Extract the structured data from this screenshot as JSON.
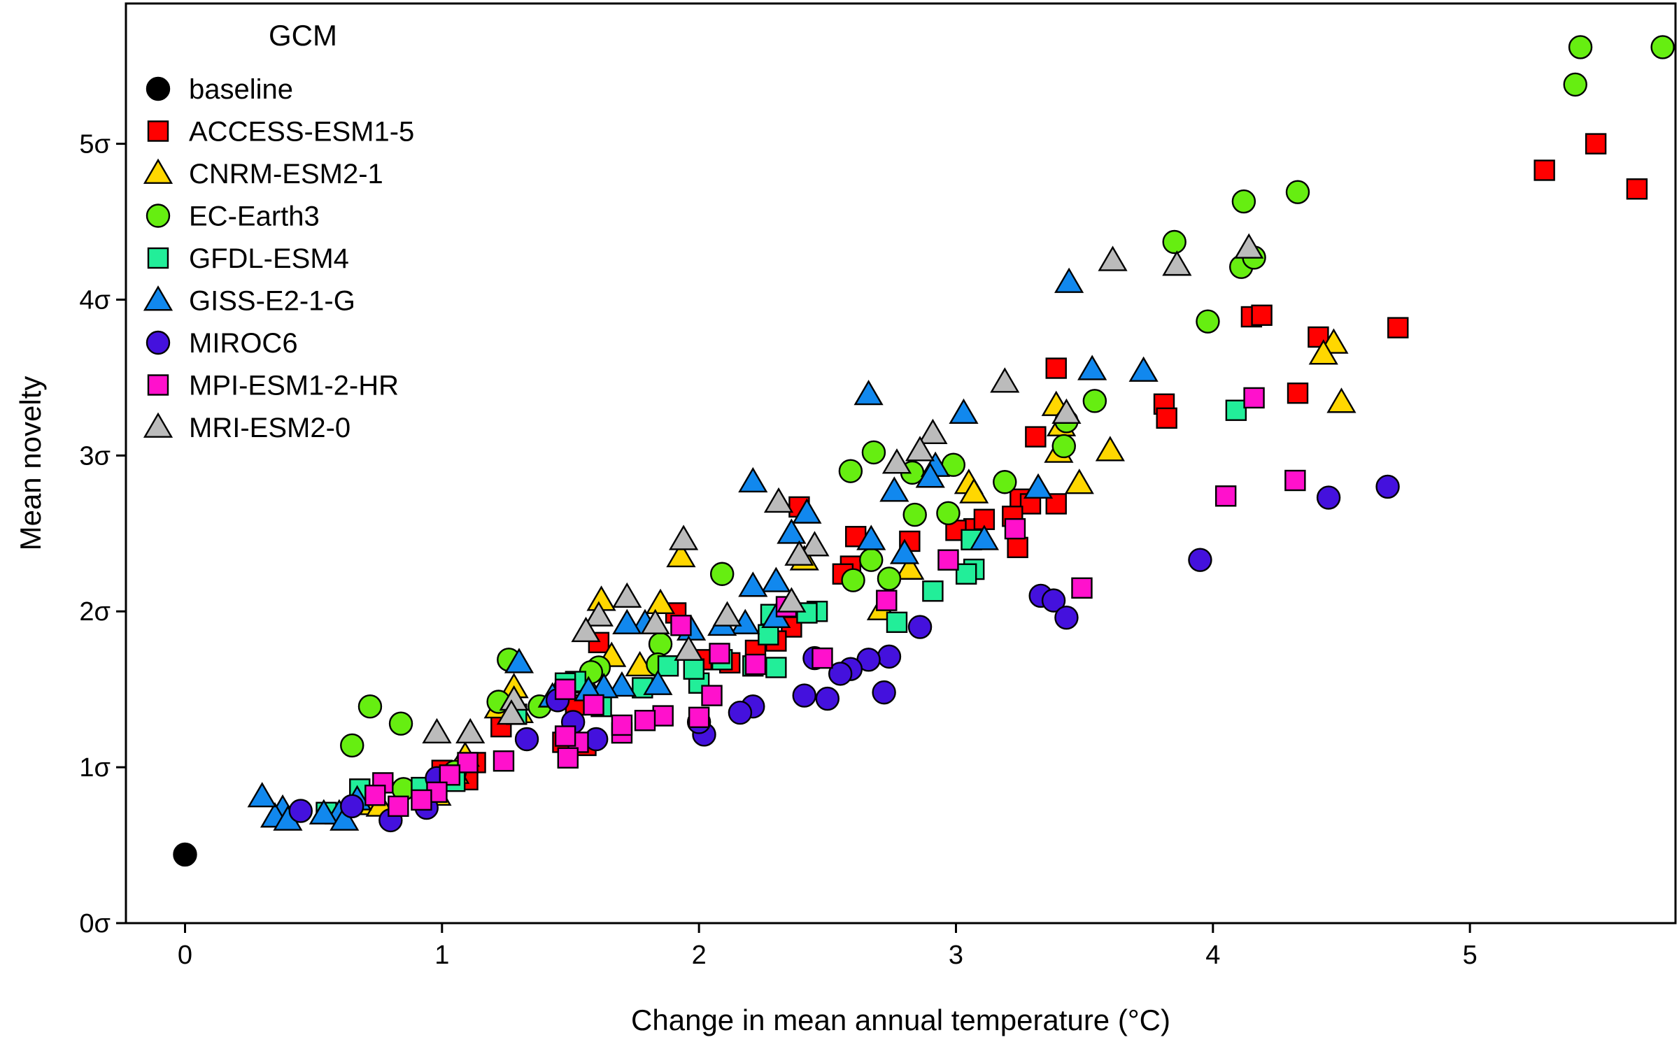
{
  "chart_data": {
    "type": "scatter",
    "title": "",
    "xlabel": "Change in mean annual temperature (°C)",
    "ylabel": "Mean novelty",
    "xlim": [
      -0.23,
      5.8
    ],
    "ylim": [
      0,
      5.9
    ],
    "x_ticks": [
      0,
      1,
      2,
      3,
      4,
      5
    ],
    "x_tick_labels": [
      "0",
      "1",
      "2",
      "3",
      "4",
      "5"
    ],
    "y_ticks": [
      0,
      1,
      2,
      3,
      4,
      5
    ],
    "y_tick_labels": [
      "0σ",
      "1σ",
      "2σ",
      "3σ",
      "4σ",
      "5σ"
    ],
    "grid": false,
    "legend": {
      "title": "GCM",
      "position": "top-left"
    },
    "series": [
      {
        "name": "baseline",
        "marker": "circle",
        "color": "#000000",
        "points": [
          [
            0.0,
            0.44
          ]
        ]
      },
      {
        "name": "ACCESS-ESM1-5",
        "marker": "square",
        "color": "#ff0000",
        "points": [
          [
            5.29,
            4.83
          ],
          [
            5.49,
            5.0
          ],
          [
            5.65,
            4.71
          ],
          [
            4.72,
            3.82
          ],
          [
            4.15,
            3.89
          ],
          [
            4.19,
            3.9
          ],
          [
            4.41,
            3.76
          ],
          [
            4.33,
            3.4
          ],
          [
            3.81,
            3.33
          ],
          [
            3.82,
            3.24
          ],
          [
            3.39,
            3.56
          ],
          [
            3.31,
            3.12
          ],
          [
            3.25,
            2.72
          ],
          [
            3.29,
            2.69
          ],
          [
            3.39,
            2.69
          ],
          [
            3.24,
            2.41
          ],
          [
            3.22,
            2.61
          ],
          [
            3.07,
            2.53
          ],
          [
            3.11,
            2.59
          ],
          [
            3.0,
            2.52
          ],
          [
            2.82,
            2.45
          ],
          [
            2.61,
            2.48
          ],
          [
            2.59,
            2.29
          ],
          [
            2.56,
            2.24
          ],
          [
            2.39,
            2.67
          ],
          [
            2.36,
            1.9
          ],
          [
            2.3,
            1.81
          ],
          [
            2.22,
            1.75
          ],
          [
            2.12,
            1.67
          ],
          [
            2.01,
            1.69
          ],
          [
            1.91,
            1.99
          ],
          [
            1.61,
            1.8
          ],
          [
            1.52,
            1.4
          ],
          [
            1.47,
            1.16
          ],
          [
            1.56,
            1.14
          ],
          [
            1.23,
            1.26
          ],
          [
            1.13,
            1.03
          ],
          [
            1.1,
            0.92
          ],
          [
            1.0,
            0.98
          ]
        ]
      },
      {
        "name": "CNRM-ESM2-1",
        "marker": "triangle",
        "color": "#ffd700",
        "points": [
          [
            4.47,
            3.72
          ],
          [
            4.43,
            3.65
          ],
          [
            4.5,
            3.34
          ],
          [
            3.6,
            3.03
          ],
          [
            3.48,
            2.82
          ],
          [
            3.4,
            3.02
          ],
          [
            3.39,
            3.32
          ],
          [
            3.41,
            3.19
          ],
          [
            3.05,
            2.82
          ],
          [
            3.07,
            2.76
          ],
          [
            2.82,
            2.27
          ],
          [
            2.71,
            2.01
          ],
          [
            2.41,
            2.33
          ],
          [
            1.93,
            2.35
          ],
          [
            1.85,
            2.05
          ],
          [
            1.62,
            2.07
          ],
          [
            1.77,
            1.65
          ],
          [
            1.56,
            1.54
          ],
          [
            1.66,
            1.71
          ],
          [
            1.3,
            1.35
          ],
          [
            1.28,
            1.51
          ],
          [
            1.22,
            1.38
          ],
          [
            1.09,
            1.07
          ],
          [
            1.05,
            0.96
          ],
          [
            0.98,
            0.82
          ],
          [
            0.72,
            0.76
          ],
          [
            0.76,
            0.75
          ]
        ]
      },
      {
        "name": "EC-Earth3",
        "marker": "circle",
        "color": "#66ee11",
        "points": [
          [
            5.43,
            5.62
          ],
          [
            5.41,
            5.38
          ],
          [
            5.75,
            5.62
          ],
          [
            4.12,
            4.63
          ],
          [
            4.33,
            4.69
          ],
          [
            3.85,
            4.37
          ],
          [
            4.11,
            4.21
          ],
          [
            4.16,
            4.27
          ],
          [
            3.98,
            3.86
          ],
          [
            3.54,
            3.35
          ],
          [
            3.43,
            3.22
          ],
          [
            3.42,
            3.06
          ],
          [
            3.19,
            2.83
          ],
          [
            2.99,
            2.94
          ],
          [
            2.97,
            2.63
          ],
          [
            2.83,
            2.89
          ],
          [
            2.84,
            2.62
          ],
          [
            2.68,
            3.02
          ],
          [
            2.59,
            2.9
          ],
          [
            2.67,
            2.33
          ],
          [
            2.6,
            2.2
          ],
          [
            2.74,
            2.21
          ],
          [
            2.09,
            2.24
          ],
          [
            1.85,
            1.79
          ],
          [
            1.84,
            1.66
          ],
          [
            1.61,
            1.64
          ],
          [
            1.58,
            1.61
          ],
          [
            1.48,
            1.51
          ],
          [
            1.38,
            1.39
          ],
          [
            1.26,
            1.69
          ],
          [
            1.22,
            1.42
          ],
          [
            0.72,
            1.39
          ],
          [
            0.84,
            1.28
          ],
          [
            0.65,
            1.14
          ],
          [
            0.85,
            0.86
          ],
          [
            1.05,
            0.97
          ]
        ]
      },
      {
        "name": "GFDL-ESM4",
        "marker": "square",
        "color": "#22ee99",
        "points": [
          [
            4.09,
            3.29
          ],
          [
            3.06,
            2.46
          ],
          [
            3.07,
            2.27
          ],
          [
            3.04,
            2.24
          ],
          [
            2.91,
            2.13
          ],
          [
            2.77,
            1.93
          ],
          [
            2.46,
            2.0
          ],
          [
            2.42,
            1.99
          ],
          [
            2.28,
            1.98
          ],
          [
            2.27,
            1.85
          ],
          [
            2.3,
            1.64
          ],
          [
            2.21,
            1.65
          ],
          [
            2.09,
            1.69
          ],
          [
            2.0,
            1.54
          ],
          [
            1.98,
            1.63
          ],
          [
            1.88,
            1.65
          ],
          [
            1.78,
            1.51
          ],
          [
            1.62,
            1.39
          ],
          [
            1.52,
            1.55
          ],
          [
            1.48,
            1.54
          ],
          [
            1.29,
            1.34
          ],
          [
            1.05,
            0.91
          ],
          [
            0.92,
            0.87
          ],
          [
            0.68,
            0.86
          ],
          [
            0.55,
            0.71
          ]
        ]
      },
      {
        "name": "GISS-E2-1-G",
        "marker": "triangle",
        "color": "#1188ee",
        "points": [
          [
            3.44,
            4.11
          ],
          [
            3.53,
            3.55
          ],
          [
            3.73,
            3.54
          ],
          [
            2.66,
            3.39
          ],
          [
            3.03,
            3.27
          ],
          [
            2.92,
            2.93
          ],
          [
            2.9,
            2.86
          ],
          [
            2.76,
            2.77
          ],
          [
            2.8,
            2.37
          ],
          [
            3.32,
            2.79
          ],
          [
            3.11,
            2.46
          ],
          [
            2.67,
            2.46
          ],
          [
            2.21,
            2.83
          ],
          [
            2.42,
            2.63
          ],
          [
            2.36,
            2.5
          ],
          [
            2.3,
            2.19
          ],
          [
            2.21,
            2.16
          ],
          [
            2.3,
            1.96
          ],
          [
            2.18,
            1.92
          ],
          [
            2.09,
            1.91
          ],
          [
            1.97,
            1.88
          ],
          [
            1.79,
            1.92
          ],
          [
            1.72,
            1.92
          ],
          [
            1.7,
            1.52
          ],
          [
            1.84,
            1.53
          ],
          [
            1.63,
            1.51
          ],
          [
            1.57,
            1.49
          ],
          [
            1.43,
            1.45
          ],
          [
            1.3,
            1.67
          ],
          [
            0.67,
            0.79
          ],
          [
            0.6,
            0.7
          ],
          [
            0.54,
            0.7
          ],
          [
            0.38,
            0.73
          ],
          [
            0.35,
            0.68
          ],
          [
            0.4,
            0.66
          ],
          [
            0.3,
            0.81
          ],
          [
            0.62,
            0.66
          ]
        ]
      },
      {
        "name": "MIROC6",
        "marker": "circle",
        "color": "#4411dd",
        "points": [
          [
            4.68,
            2.8
          ],
          [
            4.45,
            2.73
          ],
          [
            3.95,
            2.33
          ],
          [
            3.33,
            2.1
          ],
          [
            3.38,
            2.07
          ],
          [
            3.43,
            1.96
          ],
          [
            2.86,
            1.9
          ],
          [
            2.74,
            1.71
          ],
          [
            2.66,
            1.69
          ],
          [
            2.59,
            1.63
          ],
          [
            2.55,
            1.6
          ],
          [
            2.45,
            1.7
          ],
          [
            2.5,
            1.44
          ],
          [
            2.41,
            1.46
          ],
          [
            2.72,
            1.48
          ],
          [
            2.21,
            1.39
          ],
          [
            2.16,
            1.35
          ],
          [
            2.02,
            1.21
          ],
          [
            2.0,
            1.29
          ],
          [
            1.6,
            1.18
          ],
          [
            1.51,
            1.29
          ],
          [
            1.33,
            1.18
          ],
          [
            1.45,
            1.43
          ],
          [
            0.94,
            0.74
          ],
          [
            0.98,
            0.93
          ],
          [
            0.8,
            0.66
          ],
          [
            0.65,
            0.75
          ],
          [
            0.45,
            0.72
          ]
        ]
      },
      {
        "name": "MPI-ESM1-2-HR",
        "marker": "square",
        "color": "#ff11cc",
        "points": [
          [
            4.32,
            2.84
          ],
          [
            4.16,
            3.37
          ],
          [
            4.05,
            2.74
          ],
          [
            3.49,
            2.15
          ],
          [
            3.23,
            2.53
          ],
          [
            2.97,
            2.33
          ],
          [
            2.73,
            2.07
          ],
          [
            2.34,
            2.03
          ],
          [
            2.48,
            1.7
          ],
          [
            2.22,
            1.66
          ],
          [
            2.08,
            1.73
          ],
          [
            2.05,
            1.46
          ],
          [
            1.93,
            1.91
          ],
          [
            2.0,
            1.32
          ],
          [
            1.86,
            1.33
          ],
          [
            1.79,
            1.3
          ],
          [
            1.7,
            1.22
          ],
          [
            1.7,
            1.27
          ],
          [
            1.59,
            1.4
          ],
          [
            1.53,
            1.16
          ],
          [
            1.48,
            1.2
          ],
          [
            1.49,
            1.06
          ],
          [
            1.48,
            1.5
          ],
          [
            1.24,
            1.04
          ],
          [
            1.1,
            1.03
          ],
          [
            1.03,
            0.95
          ],
          [
            0.98,
            0.84
          ],
          [
            0.92,
            0.79
          ],
          [
            0.83,
            0.75
          ],
          [
            0.77,
            0.9
          ],
          [
            0.74,
            0.82
          ]
        ]
      },
      {
        "name": "MRI-ESM2-0",
        "marker": "triangle",
        "color": "#bbbbbb",
        "points": [
          [
            4.14,
            4.33
          ],
          [
            3.61,
            4.25
          ],
          [
            3.86,
            4.22
          ],
          [
            3.19,
            3.47
          ],
          [
            3.43,
            3.27
          ],
          [
            2.91,
            3.14
          ],
          [
            2.86,
            3.03
          ],
          [
            2.77,
            2.95
          ],
          [
            2.31,
            2.7
          ],
          [
            2.45,
            2.42
          ],
          [
            2.39,
            2.36
          ],
          [
            1.94,
            2.46
          ],
          [
            2.36,
            2.06
          ],
          [
            2.11,
            1.97
          ],
          [
            1.96,
            1.75
          ],
          [
            1.72,
            2.09
          ],
          [
            1.61,
            1.97
          ],
          [
            1.56,
            1.87
          ],
          [
            1.83,
            1.92
          ],
          [
            1.28,
            1.43
          ],
          [
            1.27,
            1.34
          ],
          [
            1.11,
            1.22
          ],
          [
            0.98,
            1.22
          ]
        ]
      }
    ]
  }
}
